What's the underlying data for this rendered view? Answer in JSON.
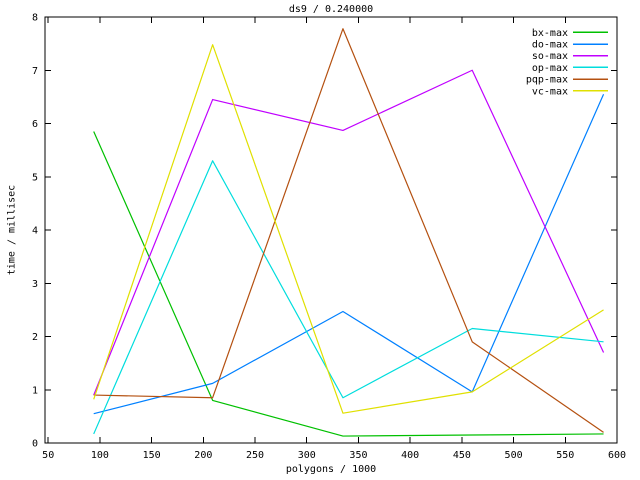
{
  "chart_data": {
    "type": "line",
    "title": "ds9 / 0.240000",
    "xlabel": "polygons / 1000",
    "ylabel": "time / millisec",
    "xlim": [
      46.9,
      600
    ],
    "ylim": [
      0,
      8
    ],
    "xticks": [
      50,
      100,
      150,
      200,
      250,
      300,
      350,
      400,
      450,
      500,
      550,
      600
    ],
    "yticks": [
      0,
      1,
      2,
      3,
      4,
      5,
      6,
      7,
      8
    ],
    "grid": false,
    "legend_position": "top-right-inside",
    "axis_color": "#000000",
    "background": "#ffffff",
    "x": [
      94,
      209,
      335,
      460,
      587
    ],
    "series": [
      {
        "name": "bx-max",
        "color": "#00c000",
        "values": [
          5.85,
          0.8,
          0.13,
          0.15,
          0.17
        ]
      },
      {
        "name": "do-max",
        "color": "#0080ff",
        "values": [
          0.55,
          1.12,
          2.47,
          0.96,
          6.55
        ]
      },
      {
        "name": "so-max",
        "color": "#c000ff",
        "values": [
          0.9,
          6.45,
          5.87,
          7.0,
          1.7
        ]
      },
      {
        "name": "op-max",
        "color": "#00dddd",
        "values": [
          0.17,
          5.3,
          0.85,
          2.15,
          1.9
        ]
      },
      {
        "name": "pqp-max",
        "color": "#b45010",
        "values": [
          0.9,
          0.85,
          7.78,
          1.9,
          0.2
        ]
      },
      {
        "name": "vc-max",
        "color": "#e0e000",
        "values": [
          0.82,
          7.48,
          0.56,
          0.96,
          2.5
        ]
      }
    ]
  }
}
